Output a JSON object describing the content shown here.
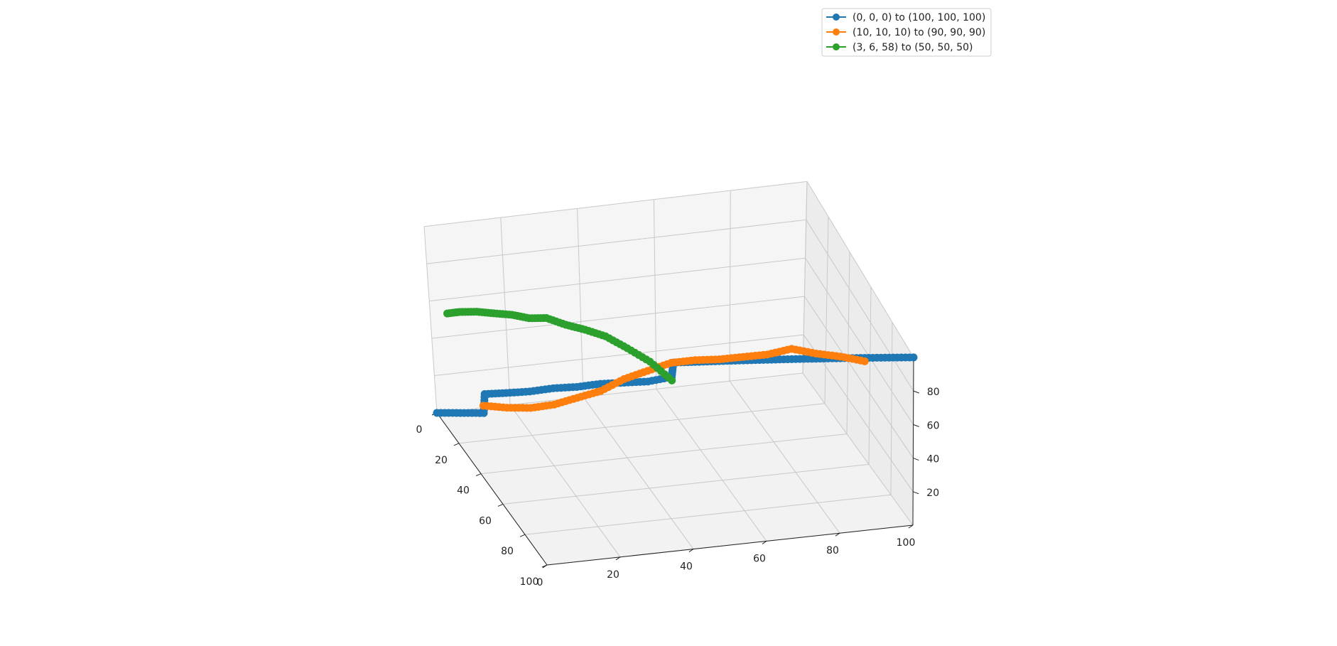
{
  "chart_data": {
    "type": "line",
    "projection": "3d",
    "grid": true,
    "legend_position": "top-right",
    "title": "",
    "xlabel": "",
    "ylabel": "",
    "zlabel": "",
    "xlim": [
      0,
      100
    ],
    "ylim": [
      0,
      100
    ],
    "zlim": [
      0,
      100
    ],
    "x_ticks": [
      "0",
      "20",
      "40",
      "60",
      "80",
      "100"
    ],
    "y_ticks": [
      "0",
      "20",
      "40",
      "60",
      "80",
      "100"
    ],
    "z_ticks": [
      "20",
      "40",
      "60",
      "80"
    ],
    "series": [
      {
        "name": "(0, 0, 0) to (100, 100, 100)",
        "color": "#1f77b4",
        "x": [
          0,
          5,
          10,
          10,
          15,
          20,
          25,
          30,
          35,
          40,
          45,
          50,
          50,
          55,
          60,
          65,
          70,
          75,
          80,
          85,
          90,
          95,
          100
        ],
        "y": [
          0,
          5,
          10,
          12,
          15,
          20,
          25,
          30,
          35,
          40,
          45,
          50,
          52,
          55,
          60,
          65,
          70,
          75,
          80,
          85,
          90,
          95,
          100
        ],
        "z": [
          0,
          3,
          6,
          18,
          20,
          24,
          29,
          33,
          38,
          42,
          46,
          52,
          62,
          64,
          68,
          72,
          76,
          80,
          84,
          88,
          92,
          96,
          100
        ]
      },
      {
        "name": "(10, 10, 10) to (90, 90, 90)",
        "color": "#ff7f0e",
        "x": [
          10,
          15,
          20,
          25,
          30,
          35,
          40,
          45,
          50,
          55,
          60,
          65,
          70,
          75,
          80,
          85,
          90
        ],
        "y": [
          10,
          15,
          20,
          25,
          30,
          35,
          40,
          45,
          50,
          55,
          60,
          65,
          70,
          75,
          80,
          85,
          90
        ],
        "z": [
          10,
          12,
          15,
          20,
          27,
          34,
          44,
          52,
          60,
          65,
          69,
          74,
          79,
          86,
          87,
          89,
          90
        ]
      },
      {
        "name": "(3, 6, 58) to (50, 50, 50)",
        "color": "#2ca02c",
        "x": [
          3,
          6,
          10,
          14,
          18,
          22,
          26,
          30,
          34,
          38,
          42,
          46,
          50
        ],
        "y": [
          6,
          7,
          9,
          11,
          14,
          16,
          18,
          22,
          26,
          31,
          37,
          44,
          50
        ],
        "z": [
          58,
          59,
          60,
          60,
          61,
          60,
          61,
          60,
          60,
          60,
          58,
          56,
          50
        ]
      }
    ]
  }
}
